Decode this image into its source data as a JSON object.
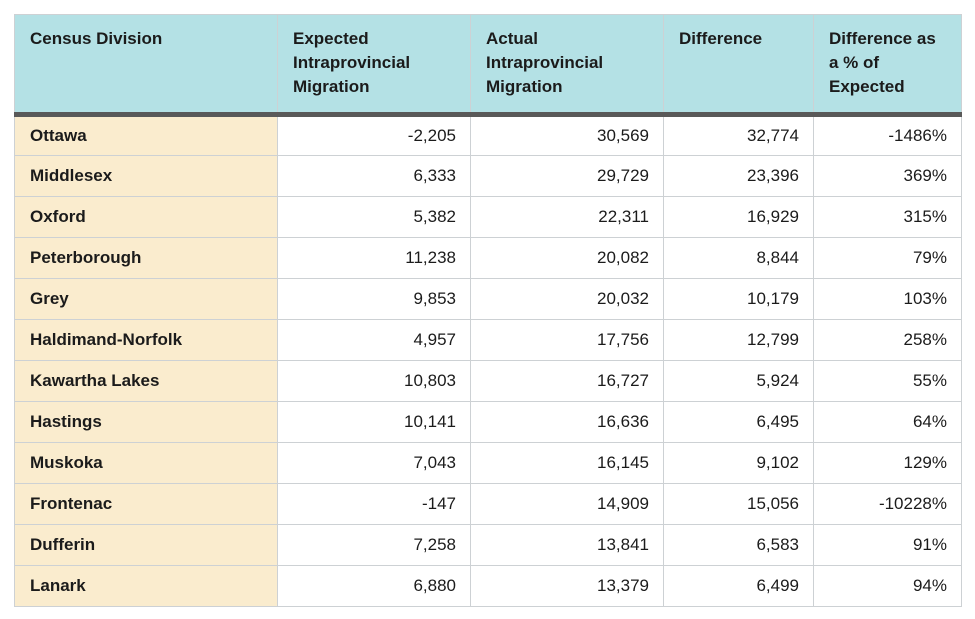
{
  "chart_data": {
    "type": "table",
    "columns": [
      "Census Division",
      "Expected Intraprovincial Migration",
      "Actual Intraprovincial Migration",
      "Difference",
      "Difference as a % of Expected"
    ],
    "rows": [
      [
        "Ottawa",
        "-2,205",
        "30,569",
        "32,774",
        "-1486%"
      ],
      [
        "Middlesex",
        "6,333",
        "29,729",
        "23,396",
        "369%"
      ],
      [
        "Oxford",
        "5,382",
        "22,311",
        "16,929",
        "315%"
      ],
      [
        "Peterborough",
        "11,238",
        "20,082",
        "8,844",
        "79%"
      ],
      [
        "Grey",
        "9,853",
        "20,032",
        "10,179",
        "103%"
      ],
      [
        "Haldimand-Norfolk",
        "4,957",
        "17,756",
        "12,799",
        "258%"
      ],
      [
        "Kawartha Lakes",
        "10,803",
        "16,727",
        "5,924",
        "55%"
      ],
      [
        "Hastings",
        "10,141",
        "16,636",
        "6,495",
        "64%"
      ],
      [
        "Muskoka",
        "7,043",
        "16,145",
        "9,102",
        "129%"
      ],
      [
        "Frontenac",
        "-147",
        "14,909",
        "15,056",
        "-10228%"
      ],
      [
        "Dufferin",
        "7,258",
        "13,841",
        "6,583",
        "91%"
      ],
      [
        "Lanark",
        "6,880",
        "13,379",
        "6,499",
        "94%"
      ]
    ],
    "title": "",
    "layout": {
      "grid": "on",
      "header_position": "top",
      "first_column_highlighted": true
    }
  },
  "colors": {
    "header_bg": "#B4E1E5",
    "division_bg": "#FAECCE",
    "header_rule": "#595959",
    "grid": "#CDD1D4",
    "text": "#1B1B1B",
    "cell_bg": "#FFFFFF"
  }
}
